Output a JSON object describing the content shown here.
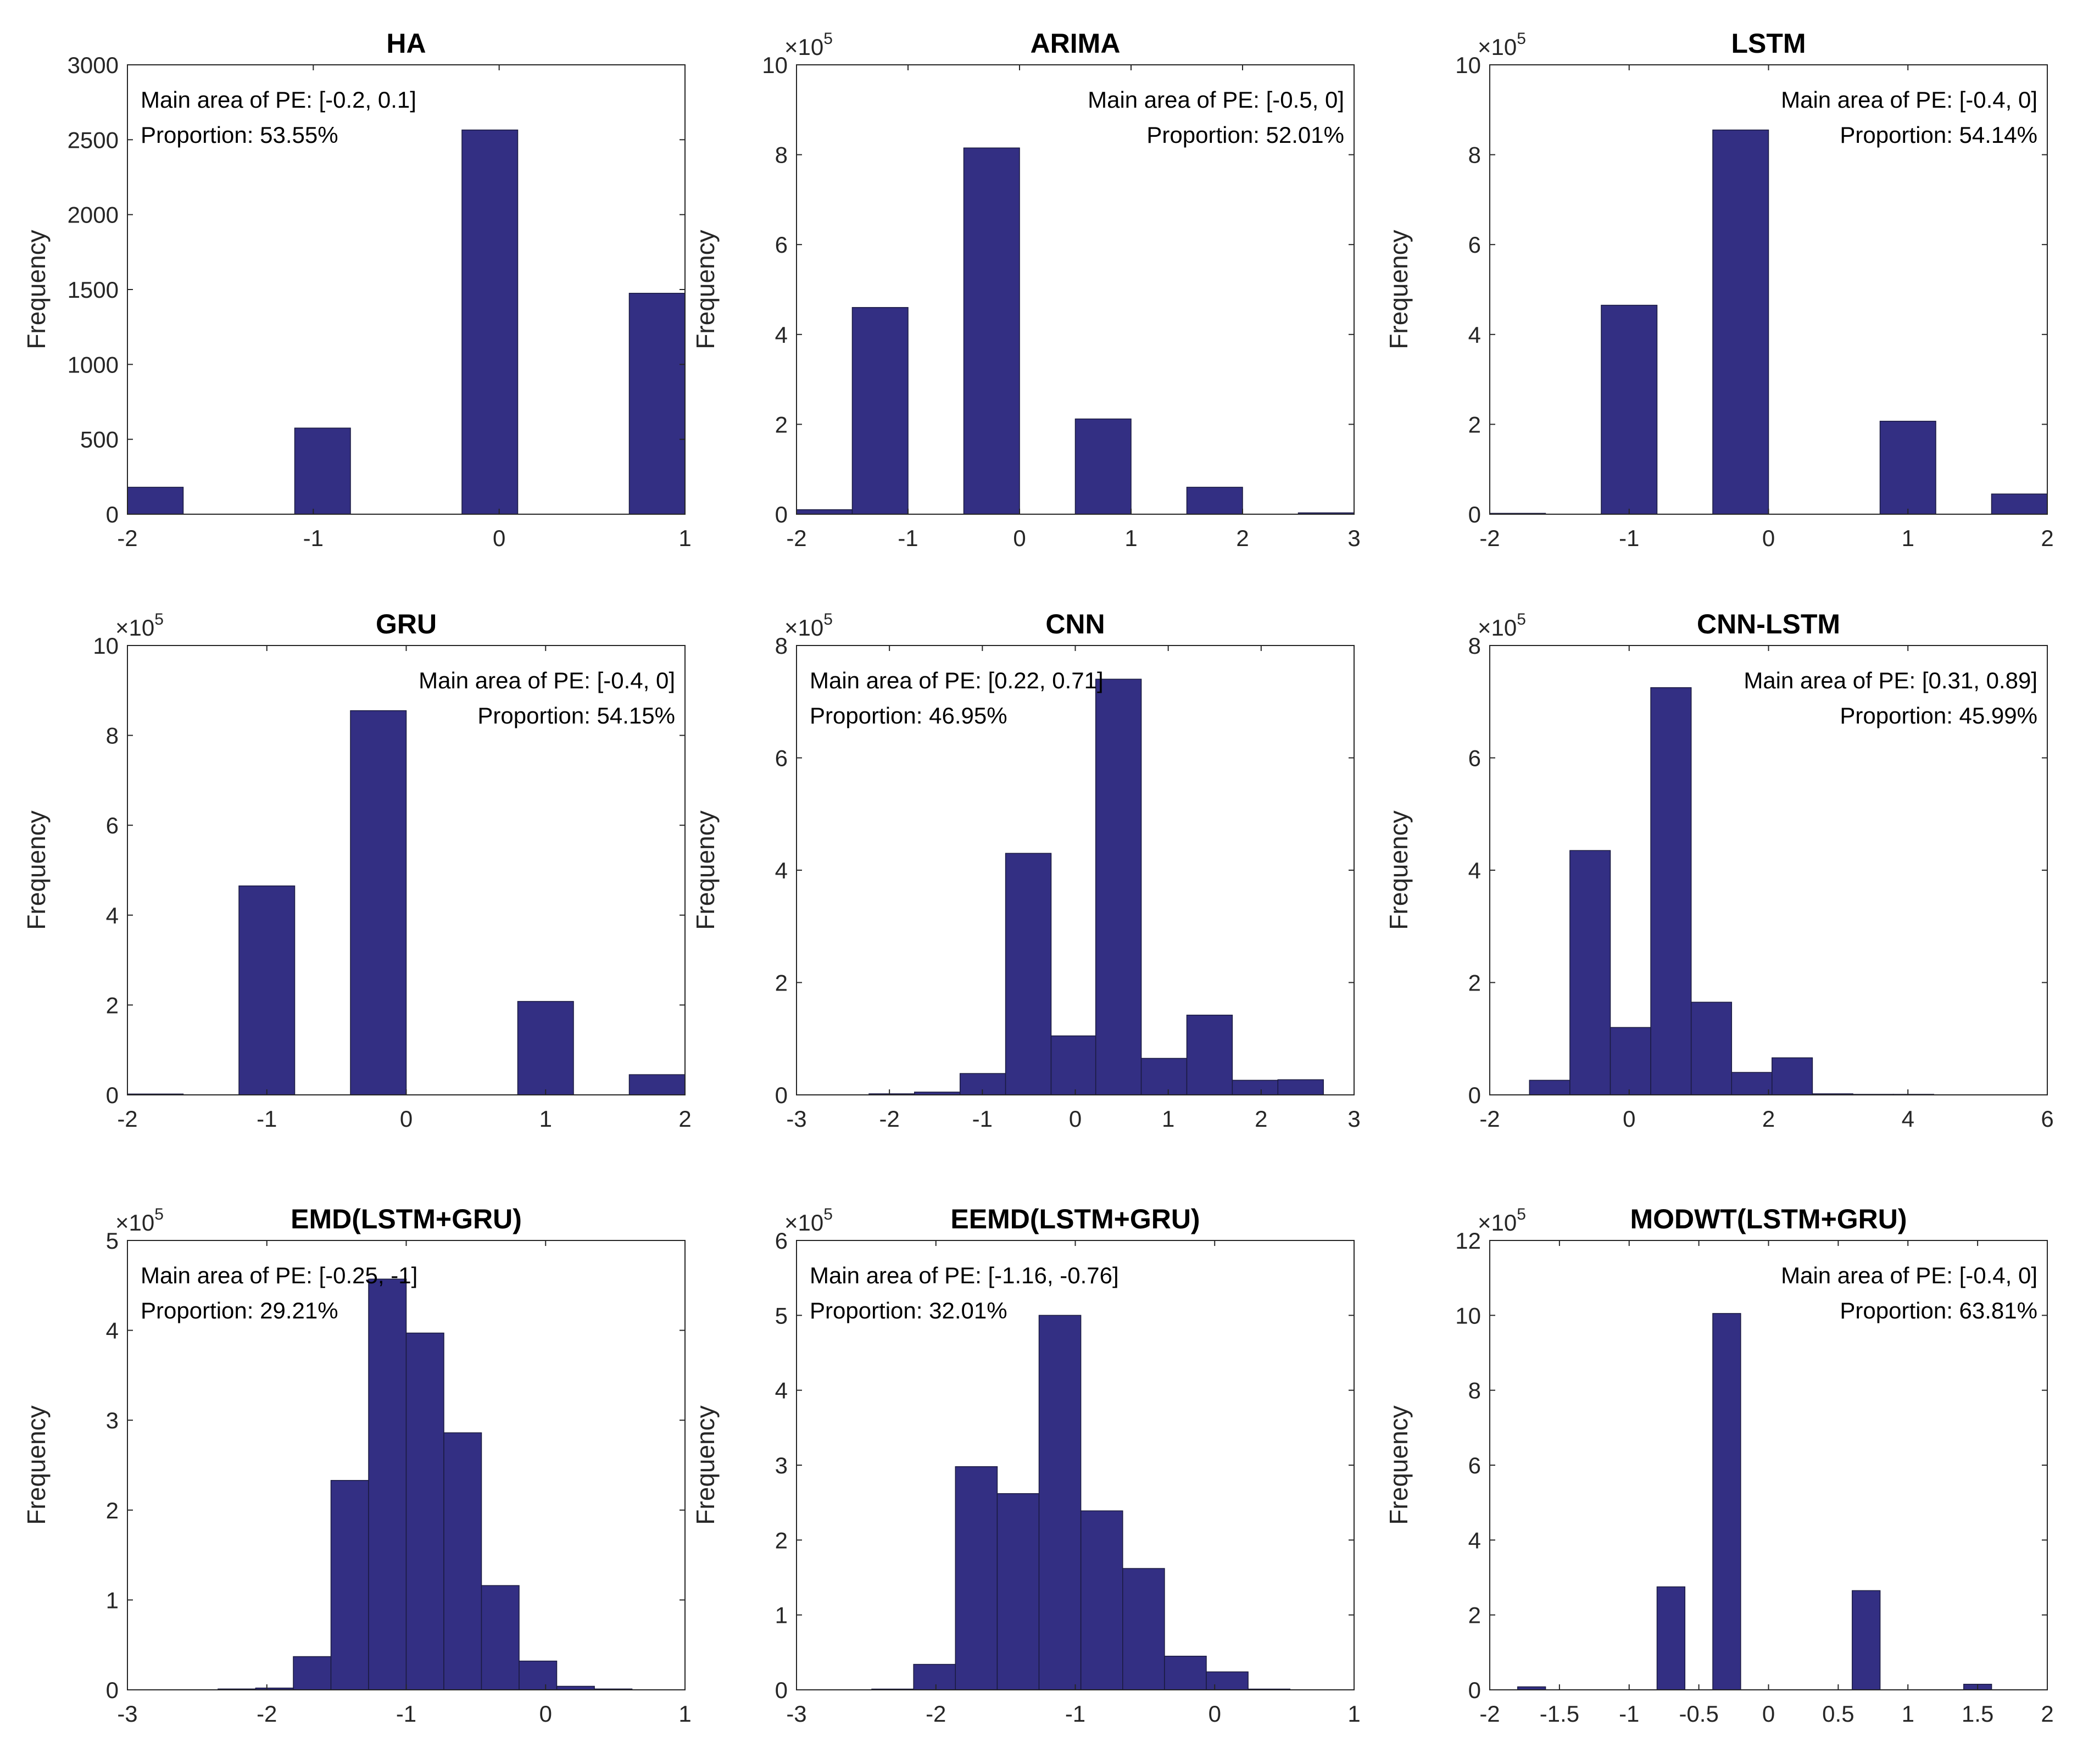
{
  "chart_data": [
    {
      "type": "bar",
      "title": "HA",
      "ylabel": "Frequency",
      "xlim": [
        -2,
        1
      ],
      "ylim": [
        0,
        3000
      ],
      "xticks": [
        "-2",
        "-1",
        "0",
        "1"
      ],
      "yticks": [
        "0",
        "500",
        "1000",
        "1500",
        "2000",
        "2500",
        "3000"
      ],
      "multiplier": "",
      "annotation": {
        "line1": "Main area of PE: [-0.2, 0.1]",
        "line2": "Proportion: 53.55%",
        "align": "left"
      },
      "bin_edges": [
        -2.0,
        -1.7,
        -1.4,
        -1.1,
        -0.8,
        -0.5,
        -0.2,
        0.1,
        0.4,
        0.7,
        1.0
      ],
      "values": [
        180,
        0,
        0,
        575,
        0,
        0,
        2565,
        0,
        0,
        1475
      ]
    },
    {
      "type": "bar",
      "title": "ARIMA",
      "ylabel": "Frequency",
      "xlim": [
        -2,
        3
      ],
      "ylim": [
        0,
        10
      ],
      "xticks": [
        "-2",
        "-1",
        "0",
        "1",
        "2",
        "3"
      ],
      "yticks": [
        "0",
        "2",
        "4",
        "6",
        "8",
        "10"
      ],
      "multiplier": "×10",
      "multiplier_exp": "5",
      "annotation": {
        "line1": "Main area of PE: [-0.5, 0]",
        "line2": "Proportion: 52.01%",
        "align": "right"
      },
      "bin_edges": [
        -2.0,
        -1.5,
        -1.0,
        -0.5,
        0.0,
        0.5,
        1.0,
        1.5,
        2.0,
        2.5,
        3.0
      ],
      "values": [
        0.1,
        4.6,
        0,
        8.15,
        0,
        2.12,
        0,
        0.6,
        0,
        0.03
      ]
    },
    {
      "type": "bar",
      "title": "LSTM",
      "ylabel": "Frequency",
      "xlim": [
        -2,
        2
      ],
      "ylim": [
        0,
        10
      ],
      "xticks": [
        "-2",
        "-1",
        "0",
        "1",
        "2"
      ],
      "yticks": [
        "0",
        "2",
        "4",
        "6",
        "8",
        "10"
      ],
      "multiplier": "×10",
      "multiplier_exp": "5",
      "annotation": {
        "line1": "Main area of PE: [-0.4, 0]",
        "line2": "Proportion: 54.14%",
        "align": "right"
      },
      "bin_edges": [
        -2.0,
        -1.6,
        -1.2,
        -0.8,
        -0.4,
        0.0,
        0.4,
        0.8,
        1.2,
        1.6,
        2.0
      ],
      "values": [
        0.02,
        0,
        4.65,
        0,
        8.55,
        0,
        0,
        2.07,
        0,
        0.45
      ]
    },
    {
      "type": "bar",
      "title": "GRU",
      "ylabel": "Frequency",
      "xlim": [
        -2,
        2
      ],
      "ylim": [
        0,
        10
      ],
      "xticks": [
        "-2",
        "-1",
        "0",
        "1",
        "2"
      ],
      "yticks": [
        "0",
        "2",
        "4",
        "6",
        "8",
        "10"
      ],
      "multiplier": "×10",
      "multiplier_exp": "5",
      "annotation": {
        "line1": "Main area of PE: [-0.4, 0]",
        "line2": "Proportion: 54.15%",
        "align": "right"
      },
      "bin_edges": [
        -2.0,
        -1.6,
        -1.2,
        -0.8,
        -0.4,
        0.0,
        0.4,
        0.8,
        1.2,
        1.6,
        2.0
      ],
      "values": [
        0.02,
        0,
        4.65,
        0,
        8.55,
        0,
        0,
        2.08,
        0,
        0.45
      ]
    },
    {
      "type": "bar",
      "title": "CNN",
      "ylabel": "Frequency",
      "xlim": [
        -3,
        3
      ],
      "ylim": [
        0,
        8
      ],
      "xticks": [
        "-3",
        "-2",
        "-1",
        "0",
        "1",
        "2",
        "3"
      ],
      "yticks": [
        "0",
        "2",
        "4",
        "6",
        "8"
      ],
      "multiplier": "×10",
      "multiplier_exp": "5",
      "annotation": {
        "line1": "Main area of PE: [0.22, 0.71]",
        "line2": "Proportion: 46.95%",
        "align": "left"
      },
      "bin_edges": [
        -2.22,
        -1.73,
        -1.24,
        -0.75,
        -0.26,
        0.22,
        0.71,
        1.2,
        1.69,
        2.18,
        2.67
      ],
      "values": [
        0.02,
        0.05,
        0.38,
        4.3,
        1.05,
        7.4,
        0.65,
        1.42,
        0.26,
        0.27
      ]
    },
    {
      "type": "bar",
      "title": "CNN-LSTM",
      "ylabel": "Frequency",
      "xlim": [
        -2,
        6
      ],
      "ylim": [
        0,
        8
      ],
      "xticks": [
        "-2",
        "0",
        "2",
        "4",
        "6"
      ],
      "yticks": [
        "0",
        "2",
        "4",
        "6",
        "8"
      ],
      "multiplier": "×10",
      "multiplier_exp": "5",
      "annotation": {
        "line1": "Main area of PE: [0.31, 0.89]",
        "line2": "Proportion: 45.99%",
        "align": "right"
      },
      "bin_edges": [
        -1.43,
        -0.85,
        -0.27,
        0.31,
        0.89,
        1.47,
        2.05,
        2.63,
        3.21,
        3.79,
        4.37
      ],
      "values": [
        0.26,
        4.35,
        1.2,
        7.25,
        1.65,
        0.4,
        0.66,
        0.02,
        0.01,
        0.01
      ]
    },
    {
      "type": "bar",
      "title": "EMD(LSTM+GRU)",
      "ylabel": "Frequency",
      "xlim": [
        -3,
        1
      ],
      "ylim": [
        0,
        5
      ],
      "xticks": [
        "-3",
        "-2",
        "-1",
        "0",
        "1"
      ],
      "yticks": [
        "0",
        "1",
        "2",
        "3",
        "4",
        "5"
      ],
      "multiplier": "×10",
      "multiplier_exp": "5",
      "annotation": {
        "line1": "Main area of PE: [-0.25, -1]",
        "line2": "Proportion: 29.21%",
        "align": "left"
      },
      "bin_edges": [
        -2.35,
        -2.08,
        -1.81,
        -1.54,
        -1.27,
        -1.0,
        -0.73,
        -0.46,
        -0.19,
        0.08,
        0.35,
        0.62
      ],
      "values": [
        0.01,
        0.02,
        0.37,
        2.33,
        4.57,
        3.97,
        2.86,
        1.16,
        0.32,
        0.04,
        0.01
      ]
    },
    {
      "type": "bar",
      "title": "EEMD(LSTM+GRU)",
      "ylabel": "Frequency",
      "xlim": [
        -3,
        1
      ],
      "ylim": [
        0,
        6
      ],
      "xticks": [
        "-3",
        "-2",
        "-1",
        "0",
        "1"
      ],
      "yticks": [
        "0",
        "1",
        "2",
        "3",
        "4",
        "5",
        "6"
      ],
      "multiplier": "×10",
      "multiplier_exp": "5",
      "annotation": {
        "line1": "Main area of PE: [-1.16, -0.76]",
        "line2": "Proportion: 32.01%",
        "align": "left"
      },
      "bin_edges": [
        -2.76,
        -2.46,
        -2.16,
        -1.86,
        -1.56,
        -1.26,
        -0.96,
        -0.66,
        -0.36,
        -0.06,
        0.24,
        0.54,
        0.84
      ],
      "values": [
        0.0,
        0.01,
        0.34,
        2.98,
        2.62,
        5.0,
        2.39,
        1.62,
        0.45,
        0.24,
        0.01,
        0.0
      ]
    },
    {
      "type": "bar",
      "title": "MODWT(LSTM+GRU)",
      "ylabel": "Frequency",
      "xlim": [
        -2,
        2
      ],
      "ylim": [
        0,
        12
      ],
      "xticks": [
        "-2",
        "-1.5",
        "-1",
        "-0.5",
        "0",
        "0.5",
        "1",
        "1.5",
        "2"
      ],
      "yticks": [
        "0",
        "2",
        "4",
        "6",
        "8",
        "10",
        "12"
      ],
      "multiplier": "×10",
      "multiplier_exp": "5",
      "annotation": {
        "line1": "Main area of PE: [-0.4, 0]",
        "line2": "Proportion: 63.81%",
        "align": "right"
      },
      "bin_edges": [
        -1.8,
        -1.6,
        -1.4,
        -1.2,
        -1.0,
        -0.8,
        -0.6,
        -0.4,
        -0.2,
        0.0,
        0.2,
        0.4,
        0.6,
        0.8,
        1.0,
        1.2,
        1.4,
        1.6,
        1.8,
        2.0
      ],
      "values": [
        0.08,
        0,
        0,
        0,
        0,
        2.75,
        0,
        10.05,
        0,
        0,
        0,
        0,
        2.65,
        0,
        0,
        0,
        0.15,
        0,
        0
      ]
    }
  ]
}
